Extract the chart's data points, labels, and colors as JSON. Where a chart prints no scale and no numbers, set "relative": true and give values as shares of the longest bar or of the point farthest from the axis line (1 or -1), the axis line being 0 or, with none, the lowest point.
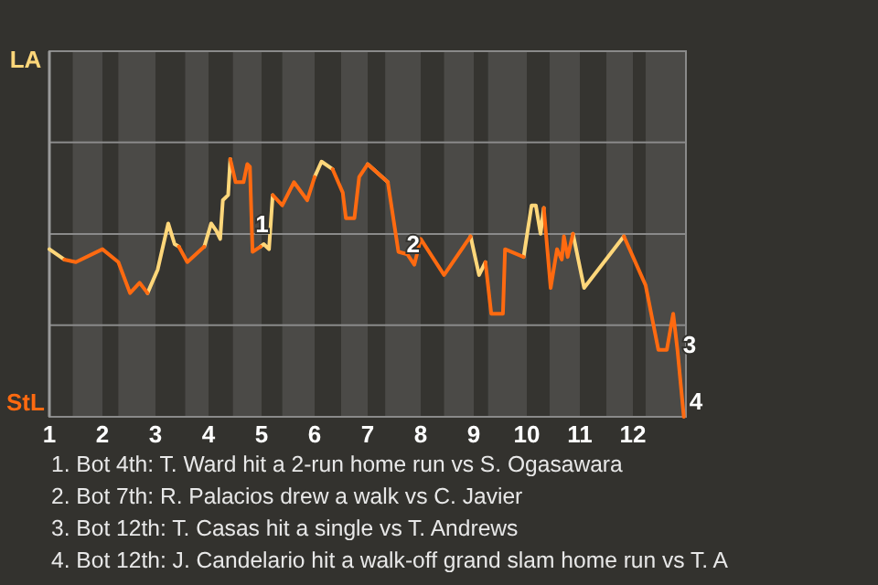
{
  "chart_data": {
    "type": "line",
    "relative": true,
    "xlim": [
      1,
      13
    ],
    "xticks": [
      1,
      2,
      3,
      4,
      5,
      6,
      7,
      8,
      9,
      10,
      11,
      12
    ],
    "ref_lines": [
      {
        "axis": "y",
        "value": 0.355,
        "color": "#8a8a8a"
      },
      {
        "axis": "y",
        "value": 0.709,
        "color": "#8a8a8a"
      },
      {
        "axis": "y",
        "value": 1.064,
        "color": "#8a8a8a"
      }
    ],
    "legend": "left",
    "marker": "none",
    "line_style": "solid",
    "x": [
      1,
      1.28,
      1.5,
      2,
      2.3,
      2.52,
      2.7,
      2.85,
      3.04,
      3.24,
      3.36,
      3.44,
      3.6,
      3.92,
      4.05,
      4.15,
      4.22,
      4.27,
      4.37,
      4.41,
      4.51,
      4.66,
      4.73,
      4.78,
      4.83,
      4.98,
      5.04,
      5.14,
      5.21,
      5.39,
      5.61,
      5.86,
      6,
      6.13,
      6.34,
      6.53,
      6.59,
      6.75,
      6.84,
      7,
      7.38,
      7.58,
      7.75,
      7.88,
      8,
      8.44,
      8.94,
      9.1,
      9.22,
      9.33,
      9.55,
      9.59,
      9.94,
      10.09,
      10.17,
      10.26,
      10.32,
      10.45,
      10.57,
      10.66,
      10.7,
      10.77,
      10.87,
      11.08,
      11.83,
      12.24,
      12.48,
      12.64,
      12.76,
      12.84,
      12.96
    ],
    "bands": [
      {
        "axis": "x",
        "from": 1.44,
        "to": 2,
        "color": "#4b4a47"
      },
      {
        "axis": "x",
        "from": 2.3,
        "to": 3,
        "color": "#4b4a47"
      },
      {
        "axis": "x",
        "from": 3.56,
        "to": 4,
        "color": "#4b4a47"
      },
      {
        "axis": "x",
        "from": 4.46,
        "to": 5,
        "color": "#4b4a47"
      },
      {
        "axis": "x",
        "from": 5.39,
        "to": 6,
        "color": "#4b4a47"
      },
      {
        "axis": "x",
        "from": 6.5,
        "to": 7,
        "color": "#4b4a47"
      },
      {
        "axis": "x",
        "from": 7.33,
        "to": 8,
        "color": "#4b4a47"
      },
      {
        "axis": "x",
        "from": 8.44,
        "to": 9,
        "color": "#4b4a47"
      },
      {
        "axis": "x",
        "from": 9.27,
        "to": 10,
        "color": "#4b4a47"
      },
      {
        "axis": "x",
        "from": 10.43,
        "to": 11,
        "color": "#4b4a47"
      },
      {
        "axis": "x",
        "from": 11.5,
        "to": 12,
        "color": "#4b4a47"
      },
      {
        "axis": "x",
        "from": 12.24,
        "to": 13,
        "color": "#4b4a47"
      }
    ],
    "series": [
      {
        "name": "LA",
        "color": "#ffd77a",
        "values": [
          0.65,
          0.61,
          null,
          null,
          null,
          null,
          null,
          0.48,
          0.57,
          0.75,
          0.67,
          0.66,
          null,
          0.66,
          0.75,
          0.72,
          0.69,
          0.84,
          0.86,
          1,
          null,
          null,
          null,
          null,
          null,
          0.66,
          0.67,
          0.65,
          0.86,
          null,
          null,
          null,
          0.93,
          0.99,
          0.96,
          null,
          null,
          null,
          null,
          0.98,
          0.91,
          null,
          null,
          null,
          null,
          null,
          0.7,
          0.55,
          0.6,
          null,
          null,
          null,
          0.62,
          0.82,
          0.82,
          0.71,
          0.81,
          null,
          null,
          null,
          null,
          null,
          0.71,
          0.5,
          0.7,
          null,
          null,
          null,
          null,
          null,
          null
        ]
      },
      {
        "name": "StL",
        "color": "#ff6a10",
        "values": [
          null,
          0.61,
          0.6,
          0.65,
          0.6,
          0.48,
          0.52,
          0.48,
          null,
          null,
          null,
          0.66,
          0.6,
          0.66,
          null,
          null,
          null,
          null,
          null,
          1,
          0.91,
          0.91,
          0.98,
          0.97,
          0.64,
          0.66,
          null,
          null,
          0.86,
          0.82,
          0.91,
          0.84,
          0.93,
          null,
          0.96,
          0.87,
          0.77,
          0.77,
          0.93,
          0.98,
          0.91,
          0.64,
          0.63,
          0.59,
          0.69,
          0.55,
          0.7,
          null,
          0.6,
          0.4,
          0.4,
          0.65,
          0.62,
          null,
          null,
          null,
          0.81,
          0.5,
          0.65,
          0.61,
          0.7,
          0.62,
          0.71,
          null,
          0.7,
          0.51,
          0.26,
          0.26,
          0.4,
          0.26,
          0
        ]
      }
    ],
    "annotations": [
      {
        "text": "1",
        "x": 4.78,
        "y": 0.75
      },
      {
        "text": "2",
        "x": 7.63,
        "y": 0.67
      },
      {
        "text": "3",
        "x": 12.84,
        "y": 0.28
      },
      {
        "text": "4",
        "x": 12.96,
        "y": 0.06
      },
      "1. Bot 4th: T. Ward hit a 2-run home run vs S. Ogasawara",
      "2. Bot 7th: R. Palacios drew a walk vs C. Javier",
      "3. Bot 12th: T. Casas hit a single vs T. Andrews",
      "4. Bot 12th: J. Candelario hit a walk-off grand slam home run vs T. A"
    ]
  }
}
